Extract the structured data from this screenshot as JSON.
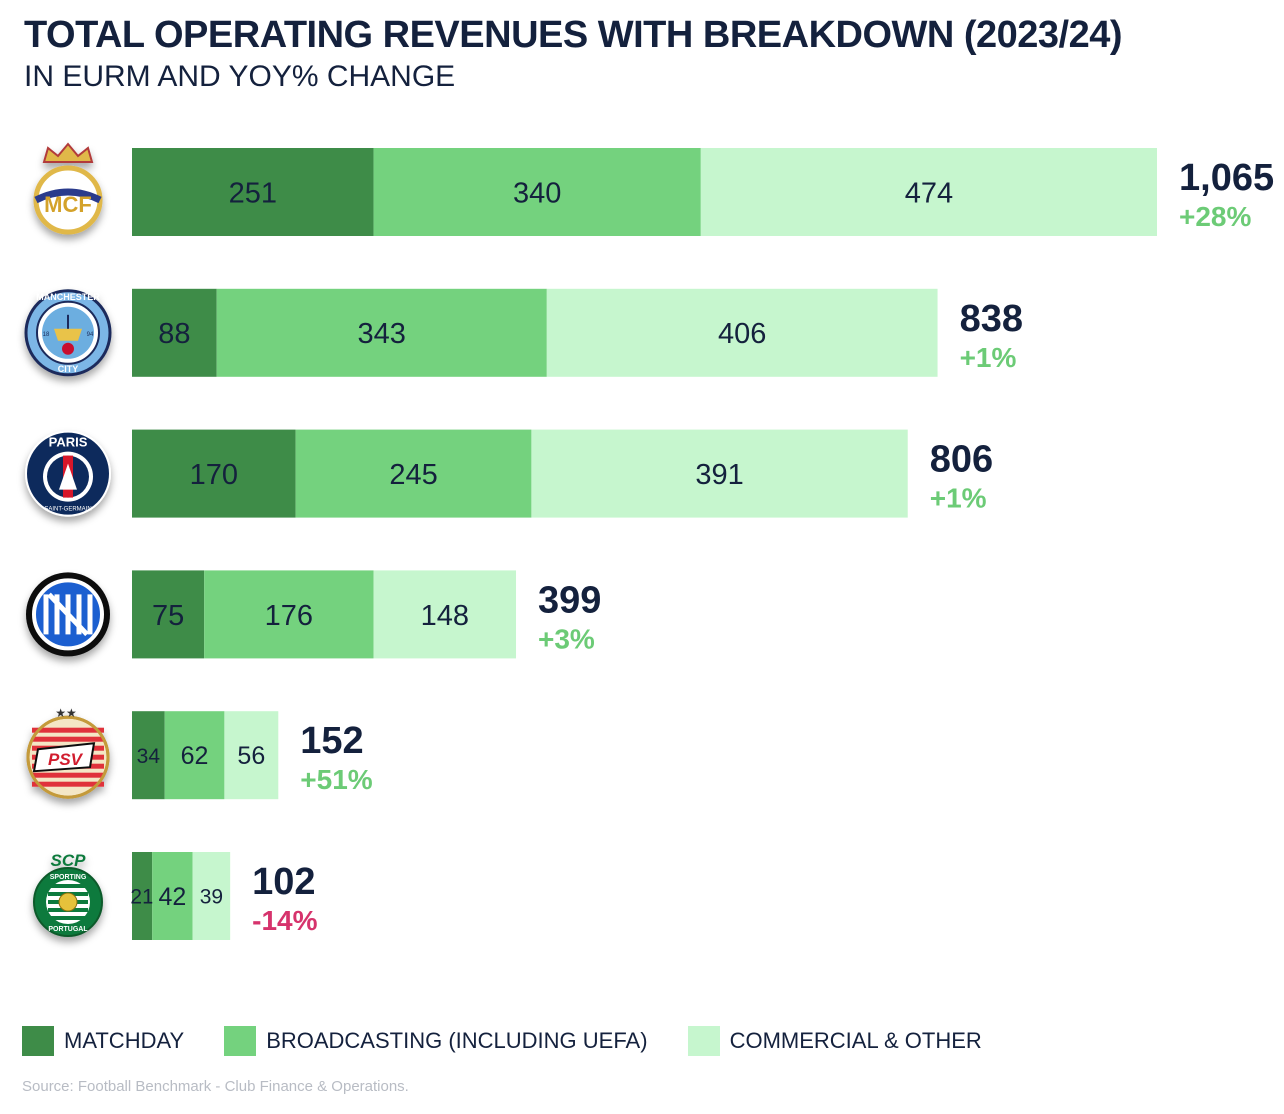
{
  "title": "TOTAL OPERATING REVENUES WITH BREAKDOWN (2023/24)",
  "subtitle": "IN EURM AND YOY% CHANGE",
  "source": "Source: Football Benchmark - Club Finance & Operations.",
  "colors": {
    "matchday": "#3e8c48",
    "broadcasting": "#74d27e",
    "commercial": "#c6f6ce",
    "positive": "#6ccb76",
    "negative": "#d6336c",
    "text": "#14213d"
  },
  "chart_data": {
    "type": "bar",
    "orientation": "horizontal",
    "stacked": true,
    "categories": [
      "Real Madrid",
      "Manchester City",
      "Paris Saint-Germain",
      "Inter",
      "PSV",
      "Sporting CP"
    ],
    "series": [
      {
        "name": "MATCHDAY",
        "values": [
          251,
          88,
          170,
          75,
          34,
          21
        ]
      },
      {
        "name": "BROADCASTING (INCLUDING UEFA)",
        "values": [
          340,
          343,
          245,
          176,
          62,
          42
        ]
      },
      {
        "name": "COMMERCIAL & OTHER",
        "values": [
          474,
          406,
          391,
          148,
          56,
          39
        ]
      }
    ],
    "totals": [
      "1,065",
      "838",
      "806",
      "399",
      "152",
      "102"
    ],
    "yoy_change": [
      "+28%",
      "+1%",
      "+1%",
      "+3%",
      "+51%",
      "-14%"
    ],
    "legend_position": "bottom",
    "grid": false
  },
  "legend": [
    {
      "label": "MATCHDAY"
    },
    {
      "label": "BROADCASTING (INCLUDING UEFA)"
    },
    {
      "label": "COMMERCIAL & OTHER"
    }
  ],
  "logos": [
    {
      "icon": "real-madrid-crest-icon"
    },
    {
      "icon": "manchester-city-crest-icon",
      "text_top": "MANCHESTER",
      "text_bottom": "CITY",
      "year_left": "18",
      "year_right": "94"
    },
    {
      "icon": "psg-crest-icon",
      "text_top": "PARIS",
      "text_bottom": "SAINT-GERMAIN"
    },
    {
      "icon": "inter-crest-icon"
    },
    {
      "icon": "psv-crest-icon",
      "text": "PSV"
    },
    {
      "icon": "sporting-crest-icon",
      "text_top": "SCP",
      "text_ring_top": "SPORTING",
      "text_ring_bottom": "PORTUGAL"
    }
  ]
}
